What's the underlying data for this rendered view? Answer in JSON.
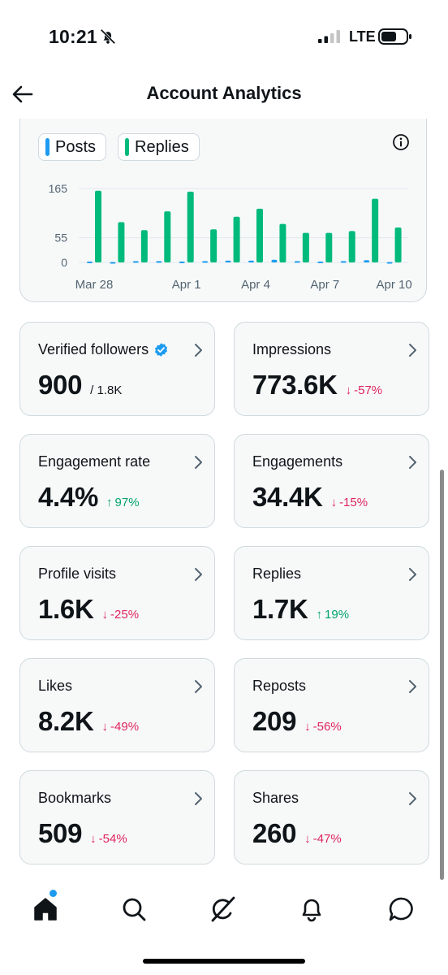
{
  "status": {
    "time": "10:21",
    "network": "LTE"
  },
  "header": {
    "title": "Account Analytics"
  },
  "chart": {
    "legend": {
      "posts": "Posts",
      "replies": "Replies"
    },
    "colors": {
      "posts": "#1d9bf0",
      "replies": "#00ba7c"
    }
  },
  "chart_data": {
    "type": "bar",
    "ylim": [
      0,
      165
    ],
    "yticks": [
      165,
      55,
      0
    ],
    "xticks": [
      "Mar 28",
      "Apr 1",
      "Apr 4",
      "Apr 7",
      "Apr 10"
    ],
    "series": [
      {
        "name": "Posts",
        "values": [
          2,
          1,
          3,
          3,
          2,
          3,
          4,
          4,
          6,
          3,
          2,
          3,
          5,
          1
        ]
      },
      {
        "name": "Replies",
        "values": [
          160,
          90,
          72,
          114,
          158,
          74,
          102,
          120,
          86,
          66,
          66,
          70,
          142,
          78
        ]
      }
    ]
  },
  "stats": [
    {
      "label": "Verified followers",
      "value": "900",
      "sub": "/ 1.8K",
      "verified": true
    },
    {
      "label": "Impressions",
      "value": "773.6K",
      "change": "-57%",
      "direction": "down"
    },
    {
      "label": "Engagement rate",
      "value": "4.4%",
      "change": "97%",
      "direction": "up"
    },
    {
      "label": "Engagements",
      "value": "34.4K",
      "change": "-15%",
      "direction": "down"
    },
    {
      "label": "Profile visits",
      "value": "1.6K",
      "change": "-25%",
      "direction": "down"
    },
    {
      "label": "Replies",
      "value": "1.7K",
      "change": "19%",
      "direction": "up"
    },
    {
      "label": "Likes",
      "value": "8.2K",
      "change": "-49%",
      "direction": "down"
    },
    {
      "label": "Reposts",
      "value": "209",
      "change": "-56%",
      "direction": "down"
    },
    {
      "label": "Bookmarks",
      "value": "509",
      "change": "-54%",
      "direction": "down"
    },
    {
      "label": "Shares",
      "value": "260",
      "change": "-47%",
      "direction": "down"
    }
  ],
  "nav": {
    "icons": [
      "home-icon",
      "search-icon",
      "grok-icon",
      "notifications-icon",
      "messages-icon"
    ]
  }
}
